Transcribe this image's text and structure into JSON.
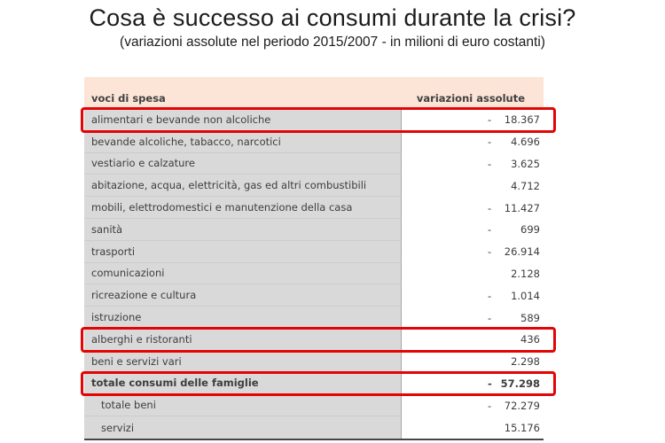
{
  "slide": {
    "title": "Cosa è successo ai consumi durante la crisi?",
    "subtitle": "(variazioni assolute nel periodo 2015/2007 - in milioni di euro costanti)"
  },
  "colors": {
    "header_band": "#fce4d6",
    "label_cell": "#d9d9d9",
    "highlight_border": "#e30505",
    "text": "#3d3d3d"
  },
  "table": {
    "headers": {
      "left": "voci di spesa",
      "right": "variazioni assolute"
    },
    "rows": [
      {
        "label": "alimentari e bevande non alcoliche",
        "sign": "-",
        "value": "18.367"
      },
      {
        "label": "bevande alcoliche, tabacco, narcotici",
        "sign": "-",
        "value": "4.696"
      },
      {
        "label": "vestiario e calzature",
        "sign": "-",
        "value": "3.625"
      },
      {
        "label": "abitazione, acqua, elettricità, gas ed altri combustibili",
        "sign": "",
        "value": "4.712"
      },
      {
        "label": "mobili, elettrodomestici e manutenzione della casa",
        "sign": "-",
        "value": "11.427"
      },
      {
        "label": "sanità",
        "sign": "-",
        "value": "699"
      },
      {
        "label": "trasporti",
        "sign": "-",
        "value": "26.914"
      },
      {
        "label": "comunicazioni",
        "sign": "",
        "value": "2.128"
      },
      {
        "label": "ricreazione e cultura",
        "sign": "-",
        "value": "1.014"
      },
      {
        "label": "istruzione",
        "sign": "-",
        "value": "589"
      },
      {
        "label": "alberghi e ristoranti",
        "sign": "",
        "value": "436"
      },
      {
        "label": "beni e servizi vari",
        "sign": "",
        "value": "2.298"
      },
      {
        "label": "totale consumi delle famiglie",
        "sign": "-",
        "value": "57.298"
      },
      {
        "label": "totale beni",
        "sign": "-",
        "value": "72.279"
      },
      {
        "label": "servizi",
        "sign": "",
        "value": "15.176"
      }
    ]
  },
  "chart_data": {
    "type": "table",
    "title": "Cosa è successo ai consumi durante la crisi?",
    "subtitle": "(variazioni assolute nel periodo 2015/2007 - in milioni di euro costanti)",
    "columns": [
      "voci di spesa",
      "variazioni assolute"
    ],
    "rows": [
      [
        "alimentari e bevande non alcoliche",
        -18367
      ],
      [
        "bevande alcoliche, tabacco, narcotici",
        -4696
      ],
      [
        "vestiario e calzature",
        -3625
      ],
      [
        "abitazione, acqua, elettricità, gas ed altri combustibili",
        4712
      ],
      [
        "mobili, elettrodomestici e manutenzione della casa",
        -11427
      ],
      [
        "sanità",
        -699
      ],
      [
        "trasporti",
        -26914
      ],
      [
        "comunicazioni",
        2128
      ],
      [
        "ricreazione e cultura",
        -1014
      ],
      [
        "istruzione",
        -589
      ],
      [
        "alberghi e ristoranti",
        436
      ],
      [
        "beni e servizi vari",
        2298
      ],
      [
        "totale consumi delle famiglie",
        -57298
      ],
      [
        "totale beni",
        -72279
      ],
      [
        "servizi",
        15176
      ]
    ],
    "highlighted_rows": [
      "alimentari e bevande non alcoliche",
      "alberghi e ristoranti",
      "totale consumi delle famiglie"
    ],
    "bold_rows": [
      "totale consumi delle famiglie"
    ],
    "indented_rows": [
      "totale beni",
      "servizi"
    ],
    "units": "milioni di euro costanti",
    "number_format": "it-IT accounting (minus sign offset left of right-aligned value)"
  }
}
